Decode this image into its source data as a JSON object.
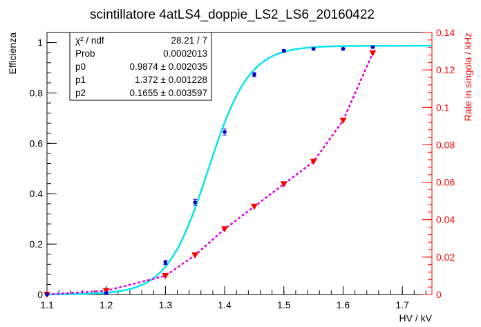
{
  "chart_data": {
    "type": "scatter",
    "title": "scintillatore 4atLS4_doppie_LS2_LS6_20160422",
    "xlabel": "HV / kV",
    "ylabel_left": "Efficienza",
    "ylabel_right": "Rate in singola / kHz",
    "xlim": [
      1.1,
      1.75
    ],
    "ylim_left": [
      0,
      1.04
    ],
    "ylim_right": [
      0,
      0.14
    ],
    "x_ticks": [
      "1.1",
      "1.2",
      "1.3",
      "1.4",
      "1.5",
      "1.6",
      "1.7"
    ],
    "x_tick_values": [
      1.1,
      1.2,
      1.3,
      1.4,
      1.5,
      1.6,
      1.7
    ],
    "y_left_ticks": [
      "0",
      "0.2",
      "0.4",
      "0.6",
      "0.8",
      "1"
    ],
    "y_left_tick_values": [
      0,
      0.2,
      0.4,
      0.6,
      0.8,
      1.0
    ],
    "y_right_ticks": [
      "0",
      "0.02",
      "0.04",
      "0.06",
      "0.08",
      "0.1",
      "0.12",
      "0.14"
    ],
    "y_right_tick_values": [
      0,
      0.02,
      0.04,
      0.06,
      0.08,
      0.1,
      0.12,
      0.14
    ],
    "colors": {
      "efficiency_points": "#0000cc",
      "fit_curve": "#00e5ee",
      "rate_points": "#ff0000",
      "rate_line": "#dd00dd",
      "right_axis": "#ff0000",
      "axis": "#000000"
    },
    "series": [
      {
        "axis": "left",
        "marker": "dot",
        "x": [
          1.1,
          1.2,
          1.3,
          1.35,
          1.4,
          1.45,
          1.5,
          1.55,
          1.6,
          1.65
        ],
        "y": [
          0.0,
          0.006,
          0.127,
          0.366,
          0.645,
          0.873,
          0.967,
          0.975,
          0.975,
          0.982
        ],
        "yerr": [
          0.002,
          0.003,
          0.008,
          0.012,
          0.012,
          0.008,
          0.005,
          0.004,
          0.004,
          0.003
        ]
      },
      {
        "axis": "right",
        "marker": "triangle-down",
        "x": [
          1.1,
          1.2,
          1.3,
          1.35,
          1.4,
          1.45,
          1.5,
          1.55,
          1.6,
          1.65
        ],
        "y": [
          0.0,
          0.002,
          0.01,
          0.021,
          0.035,
          0.047,
          0.059,
          0.071,
          0.093,
          0.129
        ]
      }
    ],
    "fit": {
      "function": "p0 / (1 + exp(-(x - p1) / (p2 * 0.21)))",
      "x_range": [
        1.1,
        1.75
      ],
      "p0": 0.9874,
      "p1": 1.372,
      "p2": 0.1655
    }
  },
  "stats_box": [
    {
      "label": "χ² / ndf",
      "value": "28.21 / 7"
    },
    {
      "label": "Prob",
      "value": "0.0002013"
    },
    {
      "label": "p0",
      "value": "0.9874 ± 0.002035"
    },
    {
      "label": "p1",
      "value": "1.372 ± 0.001228"
    },
    {
      "label": "p2",
      "value": "0.1655 ± 0.003597"
    }
  ]
}
